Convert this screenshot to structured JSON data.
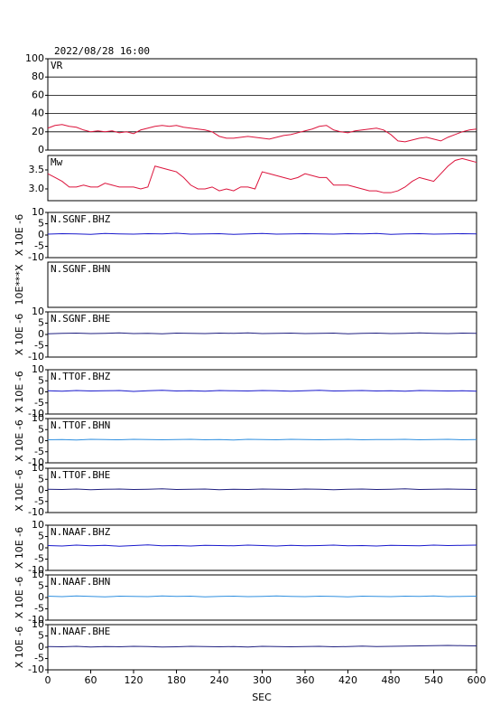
{
  "title": "2022/08/28 16:00",
  "x_axis": {
    "label": "SEC",
    "xlim": [
      0,
      600
    ],
    "xticks": [
      0,
      60,
      120,
      180,
      240,
      300,
      360,
      420,
      480,
      540,
      600
    ]
  },
  "chart_data": [
    {
      "type": "line",
      "title": "VR",
      "color": "#dc143c",
      "ylim": [
        0,
        100
      ],
      "yticks": [
        0,
        20,
        40,
        60,
        80,
        100
      ],
      "grid": true,
      "x": [
        0,
        10,
        20,
        30,
        40,
        50,
        60,
        70,
        80,
        90,
        100,
        110,
        120,
        130,
        140,
        150,
        160,
        170,
        180,
        190,
        200,
        210,
        220,
        230,
        240,
        250,
        260,
        270,
        280,
        290,
        300,
        310,
        320,
        330,
        340,
        350,
        360,
        370,
        380,
        390,
        400,
        410,
        420,
        430,
        440,
        450,
        460,
        470,
        480,
        490,
        500,
        510,
        520,
        530,
        540,
        550,
        560,
        570,
        580,
        590,
        600
      ],
      "values": [
        24,
        27,
        28,
        26,
        25,
        22,
        20,
        21,
        20,
        21,
        19,
        20,
        18,
        22,
        24,
        26,
        27,
        26,
        27,
        25,
        24,
        23,
        22,
        20,
        15,
        13,
        13,
        14,
        15,
        14,
        13,
        12,
        14,
        16,
        17,
        19,
        21,
        23,
        26,
        27,
        22,
        20,
        19,
        21,
        22,
        23,
        24,
        22,
        17,
        10,
        9,
        11,
        13,
        14,
        12,
        10,
        14,
        17,
        20,
        22,
        23
      ]
    },
    {
      "type": "line",
      "title": "Mw",
      "color": "#dc143c",
      "ylim": [
        2.69,
        3.88
      ],
      "yticks": [
        {
          "value": 3,
          "label": "3.0"
        },
        {
          "value": 3.5,
          "label": "3.5"
        }
      ],
      "grid": false,
      "x": [
        0,
        10,
        20,
        30,
        40,
        50,
        60,
        70,
        80,
        90,
        100,
        110,
        120,
        130,
        140,
        150,
        160,
        170,
        180,
        190,
        200,
        210,
        220,
        230,
        240,
        250,
        260,
        270,
        280,
        290,
        300,
        310,
        320,
        330,
        340,
        350,
        360,
        370,
        380,
        390,
        400,
        410,
        420,
        430,
        440,
        450,
        460,
        470,
        480,
        490,
        500,
        510,
        520,
        530,
        540,
        550,
        560,
        570,
        580,
        590,
        600
      ],
      "values": [
        3.4,
        3.3,
        3.2,
        3.05,
        3.05,
        3.1,
        3.05,
        3.05,
        3.15,
        3.1,
        3.05,
        3.05,
        3.05,
        3.0,
        3.05,
        3.6,
        3.55,
        3.5,
        3.45,
        3.3,
        3.1,
        3.0,
        3.0,
        3.05,
        2.95,
        3.0,
        2.95,
        3.05,
        3.05,
        3.0,
        3.45,
        3.4,
        3.35,
        3.3,
        3.25,
        3.3,
        3.4,
        3.35,
        3.3,
        3.3,
        3.1,
        3.1,
        3.1,
        3.05,
        3.0,
        2.95,
        2.95,
        2.9,
        2.9,
        2.95,
        3.05,
        3.2,
        3.3,
        3.25,
        3.2,
        3.4,
        3.6,
        3.75,
        3.8,
        3.75,
        3.7
      ]
    },
    {
      "type": "line",
      "title": "N.SGNF.BHZ",
      "ylabel": "X 10E -6",
      "color": "#1a1acc",
      "ylim": [
        -10,
        10
      ],
      "yticks": [
        -10,
        -5,
        0,
        5,
        10
      ],
      "x": [
        0,
        20,
        40,
        60,
        80,
        100,
        120,
        140,
        160,
        180,
        200,
        220,
        240,
        260,
        280,
        300,
        320,
        340,
        360,
        380,
        400,
        420,
        440,
        460,
        480,
        500,
        520,
        540,
        560,
        580,
        600
      ],
      "values": [
        0.4,
        0.6,
        0.5,
        0.3,
        0.7,
        0.5,
        0.4,
        0.6,
        0.5,
        0.8,
        0.4,
        0.5,
        0.6,
        0.3,
        0.5,
        0.7,
        0.4,
        0.5,
        0.6,
        0.5,
        0.4,
        0.6,
        0.5,
        0.7,
        0.3,
        0.5,
        0.6,
        0.4,
        0.5,
        0.6,
        0.5
      ]
    },
    {
      "type": "line",
      "title": "N.SGNF.BHN",
      "ylabel": "10E***X"
    },
    {
      "type": "line",
      "title": "N.SGNF.BHE",
      "ylabel": "X 10E -6",
      "color": "#202080",
      "ylim": [
        -10,
        10
      ],
      "yticks": [
        -10,
        -5,
        0,
        5,
        10
      ],
      "x": [
        0,
        20,
        40,
        60,
        80,
        100,
        120,
        140,
        160,
        180,
        200,
        220,
        240,
        260,
        280,
        300,
        320,
        340,
        360,
        380,
        400,
        420,
        440,
        460,
        480,
        500,
        520,
        540,
        560,
        580,
        600
      ],
      "values": [
        0.3,
        0.5,
        0.6,
        0.4,
        0.5,
        0.7,
        0.4,
        0.5,
        0.3,
        0.6,
        0.5,
        0.4,
        0.6,
        0.5,
        0.7,
        0.4,
        0.5,
        0.6,
        0.4,
        0.5,
        0.6,
        0.3,
        0.5,
        0.6,
        0.4,
        0.5,
        0.7,
        0.5,
        0.4,
        0.6,
        0.5
      ]
    },
    {
      "type": "line",
      "title": "N.TTOF.BHZ",
      "ylabel": "X 10E -6",
      "color": "#1a1acc",
      "ylim": [
        -10,
        10
      ],
      "yticks": [
        -10,
        -5,
        0,
        5,
        10
      ],
      "x": [
        0,
        20,
        40,
        60,
        80,
        100,
        120,
        140,
        160,
        180,
        200,
        220,
        240,
        260,
        280,
        300,
        320,
        340,
        360,
        380,
        400,
        420,
        440,
        460,
        480,
        500,
        520,
        540,
        560,
        580,
        600
      ],
      "values": [
        0.5,
        0.3,
        0.6,
        0.4,
        0.5,
        0.6,
        0.2,
        0.5,
        0.7,
        0.4,
        0.5,
        0.3,
        0.6,
        0.5,
        0.4,
        0.6,
        0.5,
        0.3,
        0.5,
        0.7,
        0.4,
        0.5,
        0.6,
        0.4,
        0.5,
        0.3,
        0.6,
        0.5,
        0.4,
        0.5,
        0.3
      ]
    },
    {
      "type": "line",
      "title": "N.TTOF.BHN",
      "ylabel": "X 10E -6",
      "color": "#3090e0",
      "ylim": [
        -10,
        10
      ],
      "yticks": [
        -10,
        -5,
        0,
        5,
        10
      ],
      "x": [
        0,
        20,
        40,
        60,
        80,
        100,
        120,
        140,
        160,
        180,
        200,
        220,
        240,
        260,
        280,
        300,
        320,
        340,
        360,
        380,
        400,
        420,
        440,
        460,
        480,
        500,
        520,
        540,
        560,
        580,
        600
      ],
      "values": [
        0.4,
        0.5,
        0.3,
        0.6,
        0.5,
        0.4,
        0.6,
        0.5,
        0.4,
        0.5,
        0.6,
        0.4,
        0.5,
        0.3,
        0.6,
        0.5,
        0.4,
        0.6,
        0.5,
        0.4,
        0.5,
        0.6,
        0.4,
        0.5,
        0.5,
        0.6,
        0.4,
        0.5,
        0.6,
        0.4,
        0.5
      ]
    },
    {
      "type": "line",
      "title": "N.TTOF.BHE",
      "ylabel": "X 10E -6",
      "color": "#202080",
      "ylim": [
        -10,
        10
      ],
      "yticks": [
        -10,
        -5,
        0,
        5,
        10
      ],
      "x": [
        0,
        20,
        40,
        60,
        80,
        100,
        120,
        140,
        160,
        180,
        200,
        220,
        240,
        260,
        280,
        300,
        320,
        340,
        360,
        380,
        400,
        420,
        440,
        460,
        480,
        500,
        520,
        540,
        560,
        580,
        600
      ],
      "values": [
        0.5,
        0.4,
        0.6,
        0.3,
        0.5,
        0.6,
        0.4,
        0.5,
        0.7,
        0.4,
        0.5,
        0.6,
        0.3,
        0.5,
        0.4,
        0.6,
        0.5,
        0.4,
        0.6,
        0.5,
        0.3,
        0.5,
        0.6,
        0.4,
        0.5,
        0.7,
        0.4,
        0.5,
        0.6,
        0.5,
        0.4
      ]
    },
    {
      "type": "line",
      "title": "N.NAAF.BHZ",
      "ylabel": "X 10E -6",
      "color": "#1a1acc",
      "ylim": [
        -10,
        10
      ],
      "yticks": [
        -10,
        -5,
        0,
        5,
        10
      ],
      "x": [
        0,
        20,
        40,
        60,
        80,
        100,
        120,
        140,
        160,
        180,
        200,
        220,
        240,
        260,
        280,
        300,
        320,
        340,
        360,
        380,
        400,
        420,
        440,
        460,
        480,
        500,
        520,
        540,
        560,
        580,
        600
      ],
      "values": [
        1.0,
        0.8,
        1.2,
        0.9,
        1.1,
        0.7,
        1.0,
        1.3,
        0.9,
        1.0,
        0.8,
        1.1,
        1.0,
        0.9,
        1.2,
        1.0,
        0.8,
        1.1,
        0.9,
        1.0,
        1.2,
        0.9,
        1.0,
        0.8,
        1.1,
        1.0,
        0.9,
        1.2,
        1.0,
        1.1,
        1.2
      ]
    },
    {
      "type": "line",
      "title": "N.NAAF.BHN",
      "ylabel": "X 10E -6",
      "color": "#3090e0",
      "ylim": [
        -10,
        10
      ],
      "yticks": [
        -10,
        -5,
        0,
        5,
        10
      ],
      "x": [
        0,
        20,
        40,
        60,
        80,
        100,
        120,
        140,
        160,
        180,
        200,
        220,
        240,
        260,
        280,
        300,
        320,
        340,
        360,
        380,
        400,
        420,
        440,
        460,
        480,
        500,
        520,
        540,
        560,
        580,
        600
      ],
      "values": [
        0.6,
        0.4,
        0.7,
        0.5,
        0.3,
        0.6,
        0.5,
        0.4,
        0.7,
        0.5,
        0.6,
        0.3,
        0.5,
        0.6,
        0.4,
        0.5,
        0.7,
        0.5,
        0.4,
        0.6,
        0.5,
        0.3,
        0.6,
        0.5,
        0.4,
        0.6,
        0.5,
        0.7,
        0.4,
        0.5,
        0.6
      ]
    },
    {
      "type": "line",
      "title": "N.NAAF.BHE",
      "ylabel": "X 10E -6",
      "color": "#202080",
      "ylim": [
        -10,
        10
      ],
      "yticks": [
        -10,
        -5,
        0,
        5,
        10
      ],
      "x": [
        0,
        20,
        40,
        60,
        80,
        100,
        120,
        140,
        160,
        180,
        200,
        220,
        240,
        260,
        280,
        300,
        320,
        340,
        360,
        380,
        400,
        420,
        440,
        460,
        480,
        500,
        520,
        540,
        560,
        580,
        600
      ],
      "values": [
        0.3,
        0.2,
        0.4,
        0.1,
        0.3,
        0.2,
        0.4,
        0.3,
        0.1,
        0.2,
        0.4,
        0.3,
        0.2,
        0.3,
        0.1,
        0.4,
        0.3,
        0.2,
        0.3,
        0.4,
        0.2,
        0.3,
        0.5,
        0.3,
        0.4,
        0.5,
        0.6,
        0.7,
        0.8,
        0.7,
        0.6
      ]
    }
  ]
}
